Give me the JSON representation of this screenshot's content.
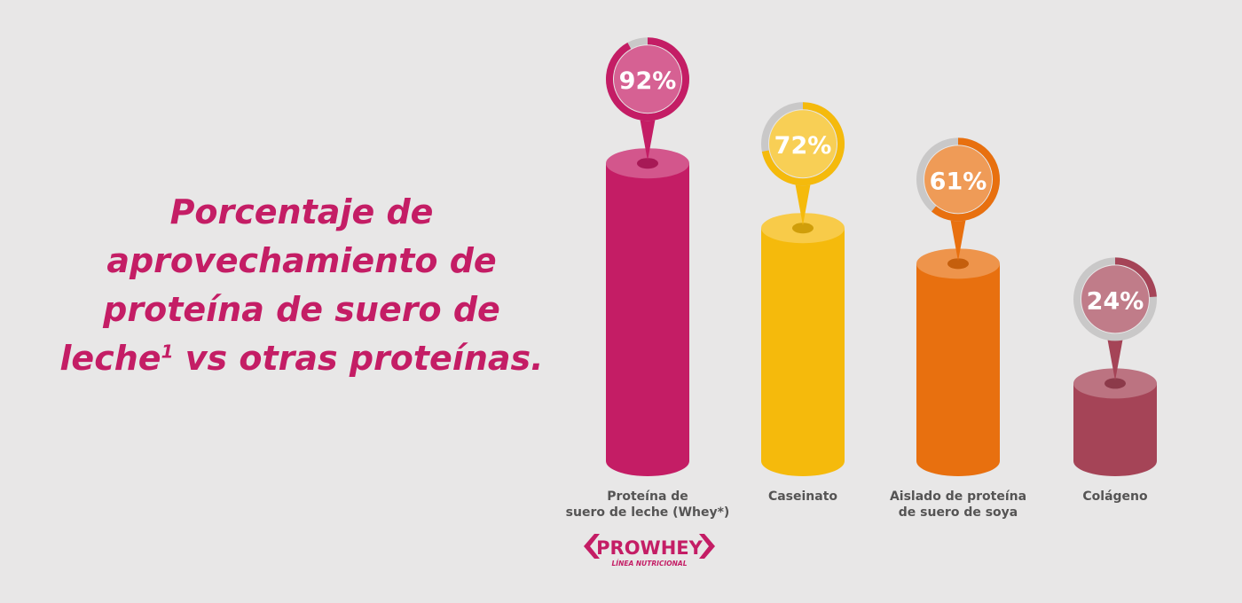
{
  "headline": {
    "line1": "Porcentaje de",
    "line2": "aprovechamiento de",
    "line3": "proteína de suero de",
    "line4_a": "leche",
    "line4_sup": "1",
    "line4_b": " vs otras proteínas."
  },
  "chart_data": {
    "type": "bar",
    "title": "",
    "categories": [
      [
        "Proteína de",
        "suero de leche (Whey*)"
      ],
      [
        "Caseinato"
      ],
      [
        "Aislado de proteína",
        "de suero de soya"
      ],
      [
        "Colágeno"
      ]
    ],
    "values": [
      92,
      72,
      61,
      24
    ],
    "value_labels": [
      "92%",
      "72%",
      "61%",
      "24%"
    ],
    "bar_colors": [
      "#c41d65",
      "#f5ba0c",
      "#e8700f",
      "#a54457"
    ],
    "grid": false
  },
  "logo": {
    "brand": "PROWHEY",
    "tagline": "LÍNEA NUTRICIONAL",
    "color": "#c41d65"
  }
}
